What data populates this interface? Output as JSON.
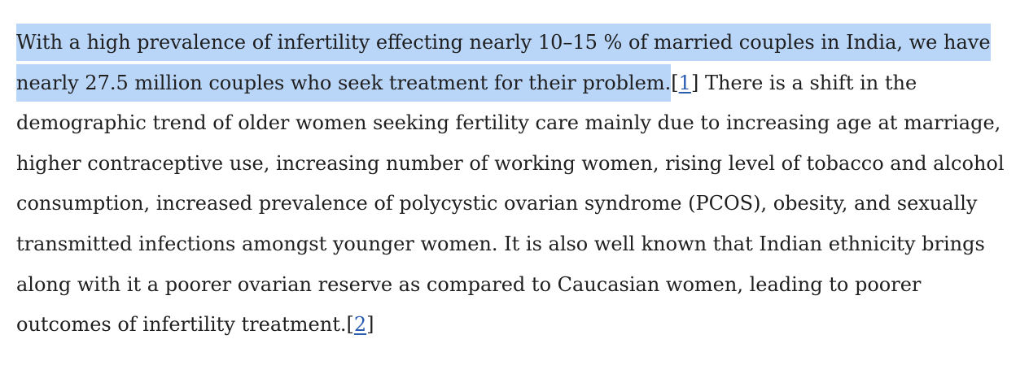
{
  "paragraph": {
    "highlighted": "With a high prevalence of infertility effecting nearly 10–15 % of married couples in India, we have nearly 27.5 million couples who seek treatment for their problem.",
    "ref1": {
      "open": "[",
      "label": "1",
      "close": "]"
    },
    "text": "There is a shift in the demographic trend of older women seeking fertility care mainly due to increasing age at marriage, higher contraceptive use, increasing number of working women, rising level of tobacco and alcohol consumption, increased prevalence of polycystic ovarian syndrome (PCOS), obesity, and sexually transmitted infections amongst younger women. It is also well known that Indian ethnicity brings along with it a poorer ovarian reserve as compared to Caucasian women, leading to poorer outcomes of infertility treatment.",
    "ref2": {
      "open": "[",
      "label": "2",
      "close": "]"
    }
  }
}
